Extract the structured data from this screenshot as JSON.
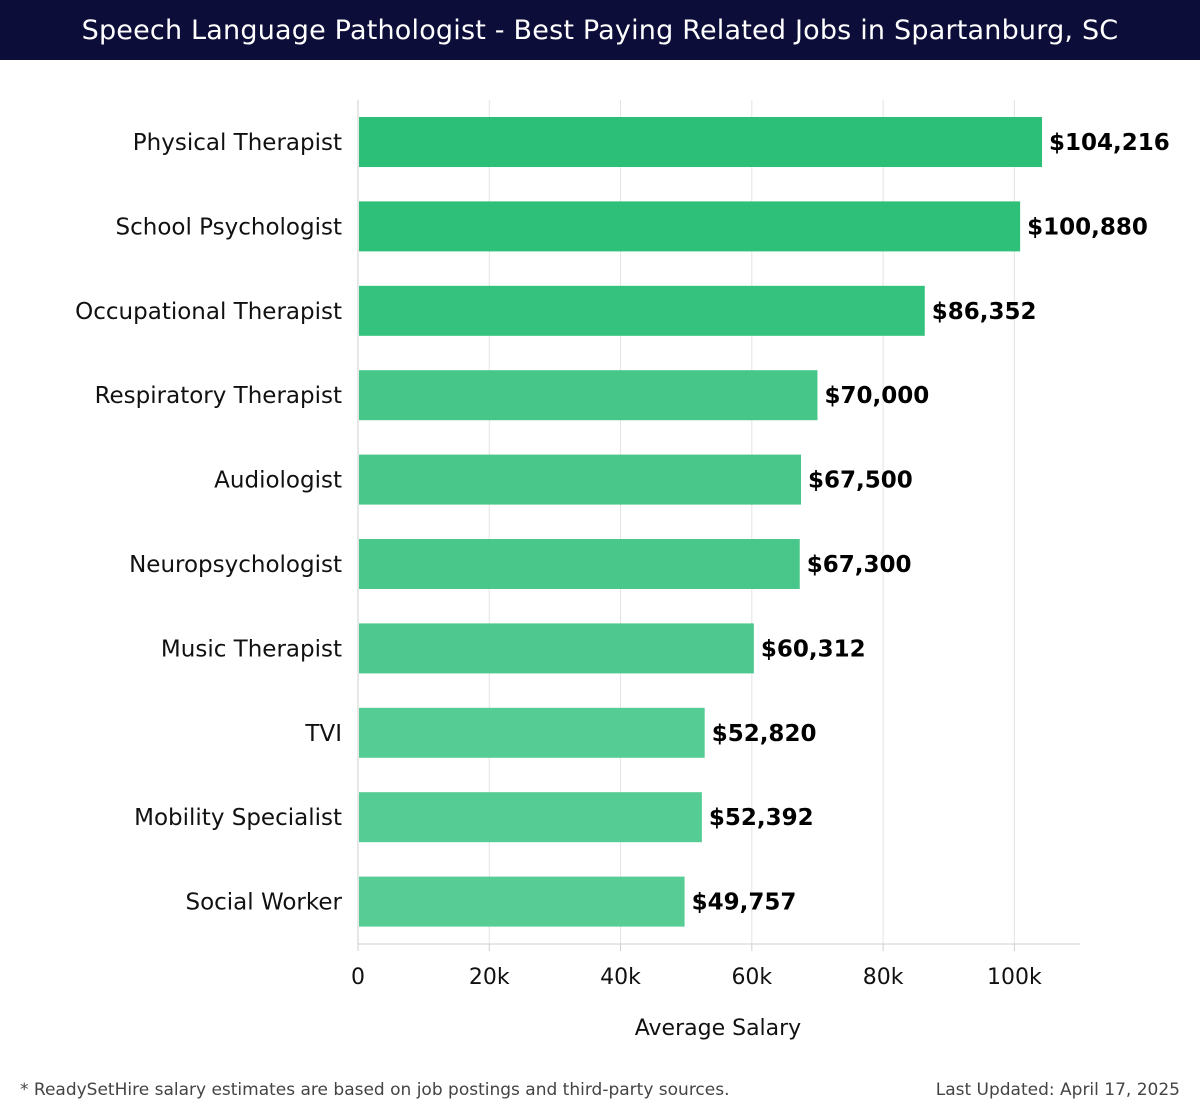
{
  "header": {
    "title": "Speech Language Pathologist - Best Paying Related Jobs in Spartanburg, SC"
  },
  "footer": {
    "note": "* ReadySetHire salary estimates are based on job postings and third-party sources.",
    "updated": "Last Updated: April 17, 2025"
  },
  "chart_data": {
    "type": "bar",
    "orientation": "horizontal",
    "title": "Speech Language Pathologist - Best Paying Related Jobs in Spartanburg, SC",
    "xlabel": "Average Salary",
    "ylabel": "",
    "xlim": [
      0,
      110000
    ],
    "grid": true,
    "categories": [
      "Physical Therapist",
      "School Psychologist",
      "Occupational Therapist",
      "Respiratory Therapist",
      "Audiologist",
      "Neuropsychologist",
      "Music Therapist",
      "TVI",
      "Mobility Specialist",
      "Social Worker"
    ],
    "values": [
      104216,
      100880,
      86352,
      70000,
      67500,
      67300,
      60312,
      52820,
      52392,
      49757
    ],
    "value_labels": [
      "$104,216",
      "$100,880",
      "$86,352",
      "$70,000",
      "$67,500",
      "$67,300",
      "$60,312",
      "$52,820",
      "$52,392",
      "$49,757"
    ],
    "xticks": [
      0,
      20000,
      40000,
      60000,
      80000,
      100000
    ],
    "xtick_labels": [
      "0",
      "20k",
      "40k",
      "60k",
      "80k",
      "100k"
    ],
    "bar_colors": [
      "#2bbf78",
      "#2ebf79",
      "#34c27e",
      "#47c68a",
      "#49c78b",
      "#49c78b",
      "#4ec88e",
      "#55cc93",
      "#55cc93",
      "#57cd95"
    ]
  }
}
